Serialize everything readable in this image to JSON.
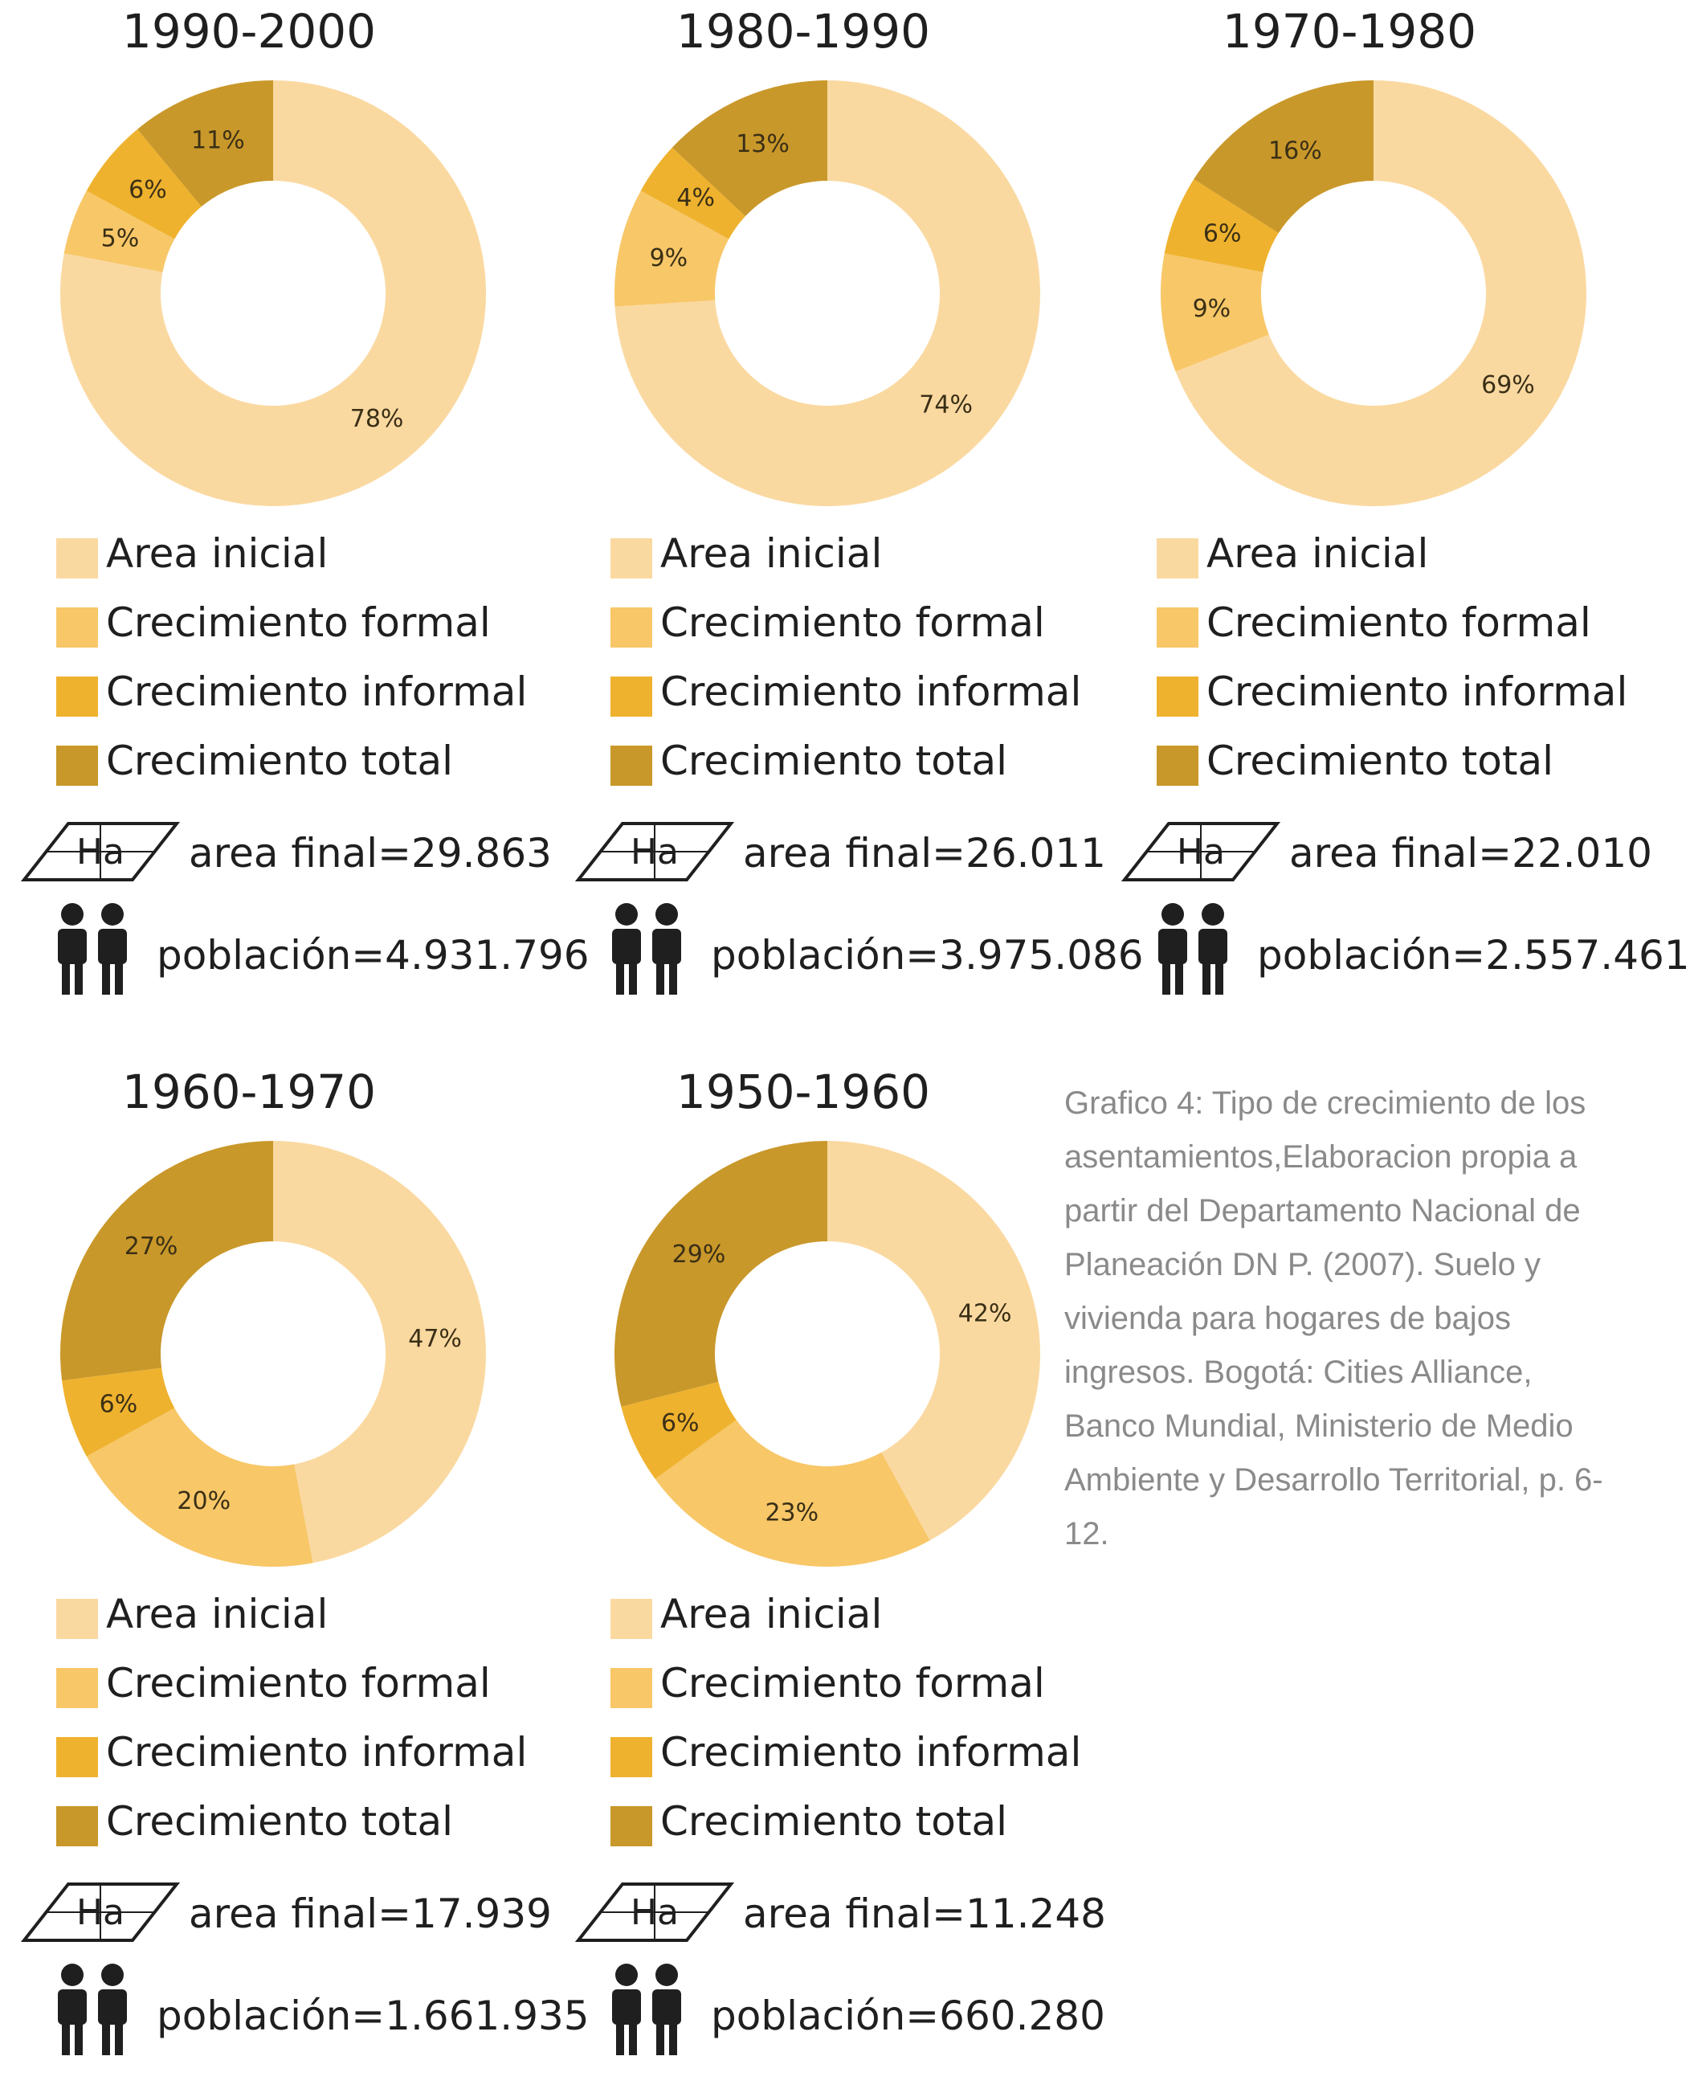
{
  "colors": {
    "area_inicial": "#FAD9A1",
    "crecimiento_formal": "#F8C768",
    "crecimiento_informal": "#EFB22E",
    "crecimiento_total": "#C9982A"
  },
  "legend_labels": [
    "Area inicial",
    "Crecimiento formal",
    "Crecimiento informal",
    "Crecimiento total"
  ],
  "icons": {
    "area": "ha-parallelogram-icon",
    "population": "people-icon"
  },
  "area_icon_label": "Ha",
  "chart_data": [
    {
      "type": "pie",
      "title": "1990-2000",
      "series": [
        {
          "name": "Area inicial",
          "value": 78,
          "label": "78%"
        },
        {
          "name": "Crecimiento formal",
          "value": 5,
          "label": "5%"
        },
        {
          "name": "Crecimiento informal",
          "value": 6,
          "label": "6%"
        },
        {
          "name": "Crecimiento total",
          "value": 11,
          "label": "11%"
        }
      ],
      "area_text": "area final=29.863",
      "pop_text": "población=4.931.796"
    },
    {
      "type": "pie",
      "title": "1980-1990",
      "series": [
        {
          "name": "Area inicial",
          "value": 74,
          "label": "74%"
        },
        {
          "name": "Crecimiento formal",
          "value": 9,
          "label": "9%"
        },
        {
          "name": "Crecimiento informal",
          "value": 4,
          "label": "4%"
        },
        {
          "name": "Crecimiento total",
          "value": 13,
          "label": "13%"
        }
      ],
      "area_text": "area final=26.011",
      "pop_text": "población=3.975.086"
    },
    {
      "type": "pie",
      "title": "1970-1980",
      "series": [
        {
          "name": "Area inicial",
          "value": 69,
          "label": "69%"
        },
        {
          "name": "Crecimiento formal",
          "value": 9,
          "label": "9%"
        },
        {
          "name": "Crecimiento informal",
          "value": 6,
          "label": "6%"
        },
        {
          "name": "Crecimiento total",
          "value": 16,
          "label": "16%"
        }
      ],
      "area_text": "area final=22.010",
      "pop_text": "población=2.557.461"
    },
    {
      "type": "pie",
      "title": "1960-1970",
      "series": [
        {
          "name": "Area inicial",
          "value": 47,
          "label": "47%"
        },
        {
          "name": "Crecimiento formal",
          "value": 20,
          "label": "20%"
        },
        {
          "name": "Crecimiento informal",
          "value": 6,
          "label": "6%"
        },
        {
          "name": "Crecimiento total",
          "value": 27,
          "label": "27%"
        }
      ],
      "area_text": "area final=17.939",
      "pop_text": "población=1.661.935"
    },
    {
      "type": "pie",
      "title": "1950-1960",
      "series": [
        {
          "name": "Area inicial",
          "value": 42,
          "label": "42%"
        },
        {
          "name": "Crecimiento formal",
          "value": 23,
          "label": "23%"
        },
        {
          "name": "Crecimiento informal",
          "value": 6,
          "label": "6%"
        },
        {
          "name": "Crecimiento total",
          "value": 29,
          "label": "29%"
        }
      ],
      "area_text": "area final=11.248",
      "pop_text": "población=660.280"
    }
  ],
  "caption": "Grafico 4: Tipo de crecimiento de los asentamientos,Elaboracion propia a partir del Departamento Nacional de Planeación DN P. (2007). Suelo y vivienda para hogares de bajos ingresos. Bogotá: Cities Alliance, Banco Mundial, Ministerio de Medio Ambiente y Desarrollo Territorial, p. 6-12."
}
